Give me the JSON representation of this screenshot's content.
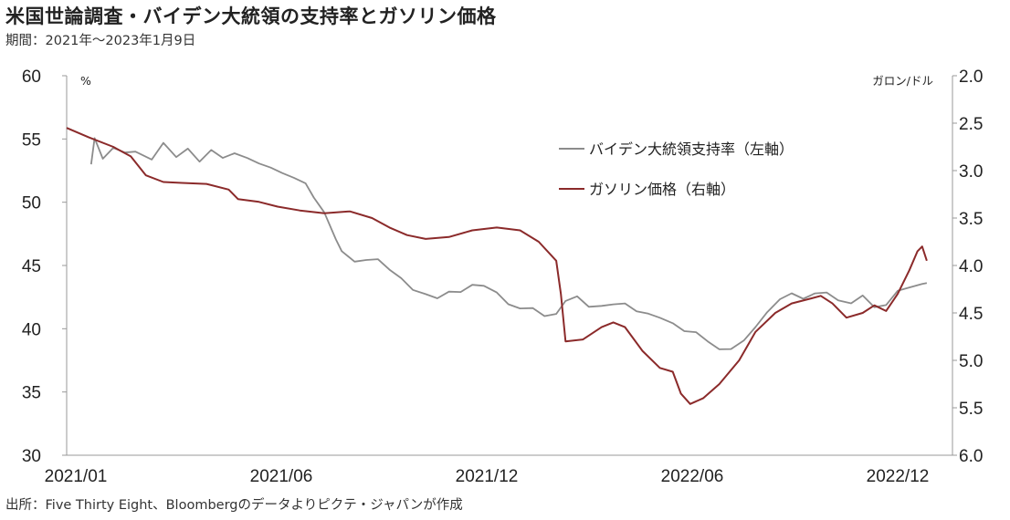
{
  "header": {
    "title": "米国世論調査・バイデン大統領の支持率とガソリン価格",
    "subtitle": "期間：2021年～2023年1月9日"
  },
  "footer": {
    "source": "出所：Five Thirty Eight、Bloombergのデータよりピクテ・ジャパンが作成"
  },
  "chart_data": {
    "type": "line",
    "x_tick_labels": [
      "2021/01",
      "2021/06",
      "2021/12",
      "2022/06",
      "2022/12"
    ],
    "left_axis": {
      "unit": "%",
      "ylim": [
        30,
        60
      ],
      "ticks": [
        "60",
        "55",
        "50",
        "45",
        "40",
        "35",
        "30"
      ]
    },
    "right_axis": {
      "unit": "ガロン/ドル",
      "ylim": [
        2.0,
        6.0
      ],
      "inverted": true,
      "ticks": [
        "2.0",
        "2.5",
        "3.0",
        "3.5",
        "4.0",
        "4.5",
        "5.0",
        "5.5",
        "6.0"
      ]
    },
    "series": [
      {
        "name": "バイデン大統領支持率（左軸）",
        "axis": "left",
        "color": "#8c8c8c",
        "points": [
          [
            "2021-01-22",
            53.0
          ],
          [
            "2021-01-25",
            55.0
          ],
          [
            "2021-02-01",
            53.5
          ],
          [
            "2021-02-10",
            54.5
          ],
          [
            "2021-02-20",
            53.8
          ],
          [
            "2021-03-01",
            54.0
          ],
          [
            "2021-03-15",
            53.5
          ],
          [
            "2021-03-25",
            54.5
          ],
          [
            "2021-04-05",
            53.5
          ],
          [
            "2021-04-15",
            54.3
          ],
          [
            "2021-04-25",
            53.4
          ],
          [
            "2021-05-05",
            54.0
          ],
          [
            "2021-05-15",
            53.5
          ],
          [
            "2021-05-25",
            54.0
          ],
          [
            "2021-06-05",
            53.3
          ],
          [
            "2021-06-15",
            53.0
          ],
          [
            "2021-06-25",
            52.8
          ],
          [
            "2021-07-05",
            52.5
          ],
          [
            "2021-07-15",
            51.8
          ],
          [
            "2021-07-25",
            51.5
          ],
          [
            "2021-08-01",
            50.5
          ],
          [
            "2021-08-10",
            49.0
          ],
          [
            "2021-08-20",
            47.0
          ],
          [
            "2021-08-25",
            46.2
          ],
          [
            "2021-09-05",
            45.5
          ],
          [
            "2021-09-15",
            45.3
          ],
          [
            "2021-09-25",
            45.5
          ],
          [
            "2021-10-05",
            44.8
          ],
          [
            "2021-10-15",
            43.8
          ],
          [
            "2021-10-25",
            43.0
          ],
          [
            "2021-11-05",
            42.8
          ],
          [
            "2021-11-15",
            42.6
          ],
          [
            "2021-11-25",
            42.8
          ],
          [
            "2021-12-05",
            42.9
          ],
          [
            "2021-12-15",
            43.6
          ],
          [
            "2021-12-25",
            43.2
          ],
          [
            "2022-01-05",
            42.8
          ],
          [
            "2022-01-15",
            42.0
          ],
          [
            "2022-01-25",
            41.8
          ],
          [
            "2022-02-05",
            41.5
          ],
          [
            "2022-02-15",
            41.0
          ],
          [
            "2022-02-25",
            41.3
          ],
          [
            "2022-03-05",
            42.0
          ],
          [
            "2022-03-15",
            42.5
          ],
          [
            "2022-03-25",
            41.8
          ],
          [
            "2022-04-05",
            42.0
          ],
          [
            "2022-04-15",
            41.8
          ],
          [
            "2022-04-25",
            42.0
          ],
          [
            "2022-05-05",
            41.5
          ],
          [
            "2022-05-15",
            41.0
          ],
          [
            "2022-05-25",
            40.8
          ],
          [
            "2022-06-05",
            40.5
          ],
          [
            "2022-06-15",
            40.0
          ],
          [
            "2022-06-25",
            39.6
          ],
          [
            "2022-07-05",
            39.0
          ],
          [
            "2022-07-15",
            38.5
          ],
          [
            "2022-07-25",
            38.2
          ],
          [
            "2022-08-05",
            39.0
          ],
          [
            "2022-08-15",
            40.2
          ],
          [
            "2022-08-25",
            41.5
          ],
          [
            "2022-09-05",
            42.2
          ],
          [
            "2022-09-15",
            42.8
          ],
          [
            "2022-09-25",
            42.5
          ],
          [
            "2022-10-05",
            42.6
          ],
          [
            "2022-10-15",
            42.8
          ],
          [
            "2022-10-25",
            42.3
          ],
          [
            "2022-11-05",
            42.2
          ],
          [
            "2022-11-15",
            42.5
          ],
          [
            "2022-11-25",
            41.7
          ],
          [
            "2022-12-05",
            42.0
          ],
          [
            "2022-12-15",
            42.8
          ],
          [
            "2022-12-25",
            43.2
          ],
          [
            "2023-01-05",
            43.6
          ],
          [
            "2023-01-09",
            43.8
          ]
        ]
      },
      {
        "name": "ガソリン価格（右軸）",
        "axis": "right",
        "color": "#8b2a2a",
        "points": [
          [
            "2021-01-01",
            2.55
          ],
          [
            "2021-01-20",
            2.65
          ],
          [
            "2021-02-10",
            2.75
          ],
          [
            "2021-02-25",
            2.85
          ],
          [
            "2021-03-10",
            3.05
          ],
          [
            "2021-03-25",
            3.12
          ],
          [
            "2021-04-10",
            3.13
          ],
          [
            "2021-05-01",
            3.14
          ],
          [
            "2021-05-20",
            3.2
          ],
          [
            "2021-05-28",
            3.3
          ],
          [
            "2021-06-15",
            3.33
          ],
          [
            "2021-07-01",
            3.38
          ],
          [
            "2021-07-20",
            3.42
          ],
          [
            "2021-08-10",
            3.45
          ],
          [
            "2021-09-01",
            3.43
          ],
          [
            "2021-09-20",
            3.5
          ],
          [
            "2021-10-05",
            3.6
          ],
          [
            "2021-10-20",
            3.68
          ],
          [
            "2021-11-05",
            3.72
          ],
          [
            "2021-11-25",
            3.7
          ],
          [
            "2021-12-15",
            3.63
          ],
          [
            "2022-01-05",
            3.6
          ],
          [
            "2022-01-25",
            3.63
          ],
          [
            "2022-02-10",
            3.75
          ],
          [
            "2022-02-25",
            3.95
          ],
          [
            "2022-03-01",
            4.3
          ],
          [
            "2022-03-05",
            4.8
          ],
          [
            "2022-03-20",
            4.78
          ],
          [
            "2022-04-05",
            4.65
          ],
          [
            "2022-04-15",
            4.6
          ],
          [
            "2022-04-25",
            4.65
          ],
          [
            "2022-05-10",
            4.9
          ],
          [
            "2022-05-25",
            5.08
          ],
          [
            "2022-06-05",
            5.12
          ],
          [
            "2022-06-12",
            5.35
          ],
          [
            "2022-06-20",
            5.46
          ],
          [
            "2022-07-01",
            5.4
          ],
          [
            "2022-07-15",
            5.25
          ],
          [
            "2022-08-01",
            5.0
          ],
          [
            "2022-08-15",
            4.7
          ],
          [
            "2022-09-01",
            4.5
          ],
          [
            "2022-09-15",
            4.4
          ],
          [
            "2022-10-01",
            4.35
          ],
          [
            "2022-10-10",
            4.32
          ],
          [
            "2022-10-20",
            4.4
          ],
          [
            "2022-11-01",
            4.55
          ],
          [
            "2022-11-15",
            4.5
          ],
          [
            "2022-11-25",
            4.42
          ],
          [
            "2022-12-05",
            4.48
          ],
          [
            "2022-12-15",
            4.3
          ],
          [
            "2022-12-25",
            4.05
          ],
          [
            "2023-01-01",
            3.85
          ],
          [
            "2023-01-05",
            3.8
          ],
          [
            "2023-01-09",
            3.95
          ]
        ]
      }
    ]
  }
}
